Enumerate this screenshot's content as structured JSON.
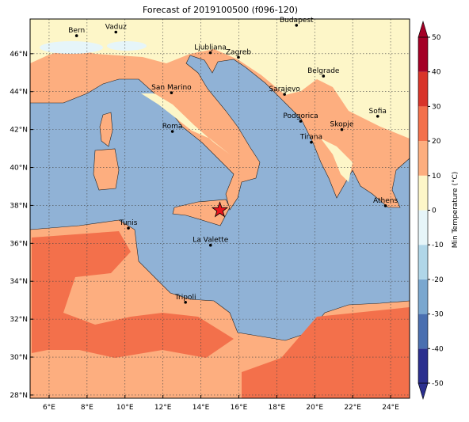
{
  "map": {
    "title": "Forecast of 2019100500 (f096-120)",
    "xlim": [
      5,
      25
    ],
    "ylim": [
      27.83,
      47.83
    ],
    "xticks": [
      {
        "value": 6,
        "label": "6°E"
      },
      {
        "value": 8,
        "label": "8°E"
      },
      {
        "value": 10,
        "label": "10°E"
      },
      {
        "value": 12,
        "label": "12°E"
      },
      {
        "value": 14,
        "label": "14°E"
      },
      {
        "value": 16,
        "label": "16°E"
      },
      {
        "value": 18,
        "label": "18°E"
      },
      {
        "value": 20,
        "label": "20°E"
      },
      {
        "value": 22,
        "label": "22°E"
      },
      {
        "value": 24,
        "label": "24°E"
      }
    ],
    "yticks": [
      {
        "value": 28,
        "label": "28°N"
      },
      {
        "value": 30,
        "label": "30°N"
      },
      {
        "value": 32,
        "label": "32°N"
      },
      {
        "value": 34,
        "label": "34°N"
      },
      {
        "value": 36,
        "label": "36°N"
      },
      {
        "value": 38,
        "label": "38°N"
      },
      {
        "value": 40,
        "label": "40°N"
      },
      {
        "value": 42,
        "label": "42°N"
      },
      {
        "value": 44,
        "label": "44°N"
      },
      {
        "value": 46,
        "label": "46°N"
      }
    ],
    "grid": true,
    "cities": [
      {
        "name": "Bern",
        "lon": 7.45,
        "lat": 46.95
      },
      {
        "name": "Vaduz",
        "lon": 9.52,
        "lat": 47.14
      },
      {
        "name": "Budapest",
        "lon": 19.04,
        "lat": 47.5
      },
      {
        "name": "Ljubljana",
        "lon": 14.5,
        "lat": 46.05
      },
      {
        "name": "Zagreb",
        "lon": 15.98,
        "lat": 45.81
      },
      {
        "name": "Belgrade",
        "lon": 20.46,
        "lat": 44.82
      },
      {
        "name": "Sarajevo",
        "lon": 18.41,
        "lat": 43.86
      },
      {
        "name": "San Marino",
        "lon": 12.45,
        "lat": 43.94
      },
      {
        "name": "Sofia",
        "lon": 23.32,
        "lat": 42.7
      },
      {
        "name": "Podgorica",
        "lon": 19.26,
        "lat": 42.44
      },
      {
        "name": "Skopje",
        "lon": 21.43,
        "lat": 42.0
      },
      {
        "name": "Roma",
        "lon": 12.5,
        "lat": 41.9
      },
      {
        "name": "Tirana",
        "lon": 19.82,
        "lat": 41.33
      },
      {
        "name": "Athens",
        "lon": 23.73,
        "lat": 37.98
      },
      {
        "name": "Tunis",
        "lon": 10.18,
        "lat": 36.8
      },
      {
        "name": "La Valette",
        "lon": 14.51,
        "lat": 35.9
      },
      {
        "name": "Tripoli",
        "lon": 13.19,
        "lat": 32.89
      }
    ],
    "marker": {
      "lon": 15.0,
      "lat": 37.75,
      "color": "#e8141c"
    },
    "colorbar": {
      "label": "Min Temperature (°C)",
      "lim": [
        -50,
        50
      ],
      "ticks": [
        -50,
        -40,
        -30,
        -20,
        -10,
        0,
        10,
        20,
        30,
        40,
        50
      ],
      "colors": [
        "#2b2f8e",
        "#4a6fb0",
        "#7aa7cf",
        "#b0d6e8",
        "#e6f5f9",
        "#fdf6c8",
        "#fdae7f",
        "#f3704b",
        "#d8342a",
        "#a40026"
      ]
    }
  }
}
